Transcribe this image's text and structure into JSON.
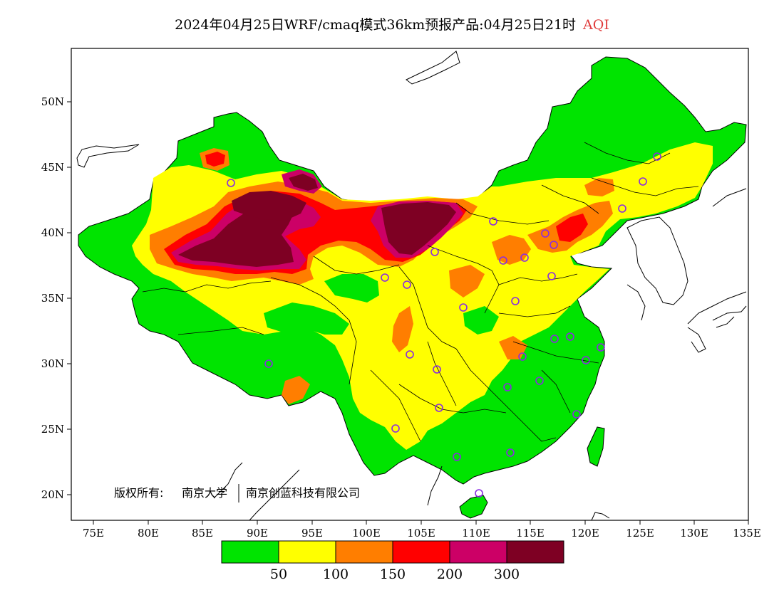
{
  "title": {
    "main": "2024年04月25日WRF/cmaq模式36km预报产品:04月25日21时",
    "variable": "AQI"
  },
  "axes": {
    "y_ticks": [
      "50N",
      "45N",
      "40N",
      "35N",
      "30N",
      "25N",
      "20N"
    ],
    "x_ticks": [
      "75E",
      "80E",
      "85E",
      "90E",
      "95E",
      "100E",
      "105E",
      "110E",
      "115E",
      "120E",
      "125E",
      "130E",
      "135E"
    ]
  },
  "copyright": {
    "prefix": "版权所有:",
    "org1": "南京大学",
    "org2": "南京创蓝科技有限公司"
  },
  "legend": {
    "colors": [
      "#00e400",
      "#ffff00",
      "#ff7e00",
      "#ff0000",
      "#cc0066",
      "#7e0023"
    ],
    "breaks": [
      "50",
      "100",
      "150",
      "200",
      "300"
    ]
  },
  "colors": {
    "good": "#00e400",
    "moderate": "#ffff00",
    "usg": "#ff7e00",
    "unhealthy": "#ff0000",
    "very_unhealthy": "#cc0066",
    "hazardous": "#7e0023",
    "station_marker": "#8a2be2"
  }
}
